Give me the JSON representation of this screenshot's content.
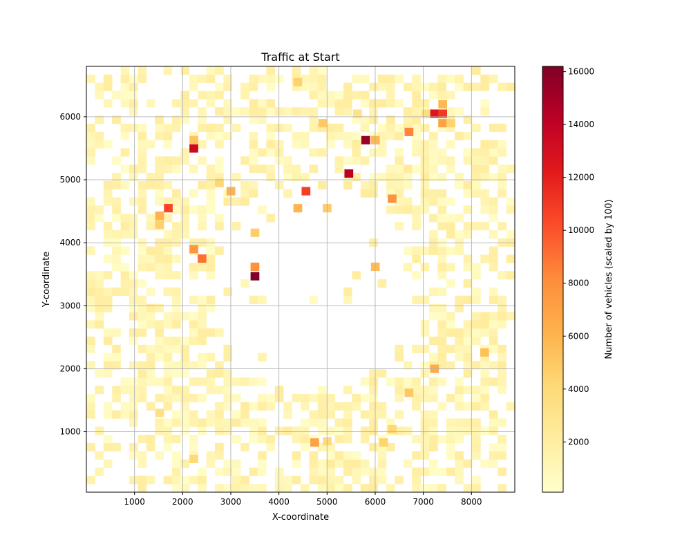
{
  "chart_data": {
    "type": "heatmap",
    "title": "Traffic at Start",
    "xlabel": "X-coordinate",
    "ylabel": "Y-coordinate",
    "xlim": [
      0,
      8900
    ],
    "ylim": [
      40,
      6800
    ],
    "xticks": [
      1000,
      2000,
      3000,
      4000,
      5000,
      6000,
      7000,
      8000
    ],
    "yticks": [
      1000,
      2000,
      3000,
      4000,
      5000,
      6000
    ],
    "grid": true,
    "bin_size": [
      178,
      130
    ],
    "colormap": "YlOrRd",
    "colorbar": {
      "label": "Number of vehicles (scaled by 100)",
      "range": [
        100,
        16200
      ],
      "ticks": [
        2000,
        4000,
        6000,
        8000,
        10000,
        12000,
        14000,
        16000
      ]
    },
    "hotspots": [
      {
        "x": 3500,
        "y": 3470,
        "value": 16200
      },
      {
        "x": 5800,
        "y": 5630,
        "value": 15300
      },
      {
        "x": 5450,
        "y": 5100,
        "value": 14200
      },
      {
        "x": 2230,
        "y": 5500,
        "value": 13500
      },
      {
        "x": 7230,
        "y": 6050,
        "value": 12500
      },
      {
        "x": 7400,
        "y": 6050,
        "value": 11000
      },
      {
        "x": 4560,
        "y": 4820,
        "value": 10800
      },
      {
        "x": 1700,
        "y": 4550,
        "value": 10500
      },
      {
        "x": 2400,
        "y": 3750,
        "value": 9000
      },
      {
        "x": 6700,
        "y": 5760,
        "value": 8400
      },
      {
        "x": 3500,
        "y": 3620,
        "value": 7800
      },
      {
        "x": 6350,
        "y": 4700,
        "value": 7800
      },
      {
        "x": 2230,
        "y": 3900,
        "value": 7600
      },
      {
        "x": 7400,
        "y": 5900,
        "value": 7000
      },
      {
        "x": 4740,
        "y": 830,
        "value": 7000
      },
      {
        "x": 7230,
        "y": 2000,
        "value": 6500
      },
      {
        "x": 3000,
        "y": 4820,
        "value": 6200
      },
      {
        "x": 4390,
        "y": 4550,
        "value": 6000
      },
      {
        "x": 1520,
        "y": 4430,
        "value": 6000
      },
      {
        "x": 7400,
        "y": 6200,
        "value": 5800
      },
      {
        "x": 6000,
        "y": 5630,
        "value": 5800
      },
      {
        "x": 6000,
        "y": 3620,
        "value": 5600
      },
      {
        "x": 8270,
        "y": 2260,
        "value": 5400
      },
      {
        "x": 2230,
        "y": 5630,
        "value": 5200
      },
      {
        "x": 4910,
        "y": 5900,
        "value": 5000
      },
      {
        "x": 6700,
        "y": 1620,
        "value": 5000
      },
      {
        "x": 3500,
        "y": 4160,
        "value": 4800
      },
      {
        "x": 5000,
        "y": 4550,
        "value": 4800
      },
      {
        "x": 1520,
        "y": 4290,
        "value": 4600
      },
      {
        "x": 4390,
        "y": 6550,
        "value": 4500
      },
      {
        "x": 6170,
        "y": 830,
        "value": 4400
      },
      {
        "x": 7570,
        "y": 5900,
        "value": 4400
      },
      {
        "x": 2760,
        "y": 4950,
        "value": 4300
      },
      {
        "x": 6350,
        "y": 1040,
        "value": 4200
      },
      {
        "x": 2230,
        "y": 570,
        "value": 4100
      },
      {
        "x": 5000,
        "y": 850,
        "value": 3800
      },
      {
        "x": 7050,
        "y": 6050,
        "value": 3600
      },
      {
        "x": 1520,
        "y": 1300,
        "value": 3400
      },
      {
        "x": 5630,
        "y": 6050,
        "value": 3200
      }
    ],
    "note_bg": "background bins ~1000-2500 along road network rings"
  }
}
